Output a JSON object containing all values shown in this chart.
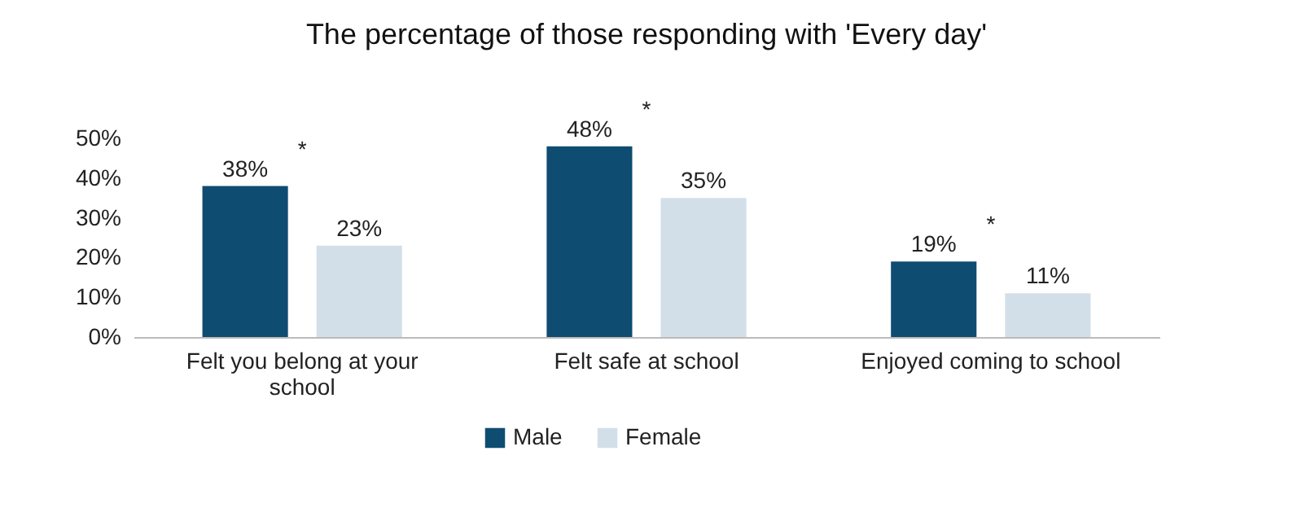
{
  "chart_data": {
    "type": "bar",
    "title": "The percentage of those responding with 'Every day'",
    "categories": [
      "Felt you belong at your school",
      "Felt safe at school",
      "Enjoyed coming to school"
    ],
    "series": [
      {
        "name": "Male",
        "color": "#0f4c71",
        "values": [
          38,
          48,
          19
        ],
        "value_labels": [
          "38%",
          "48%",
          "19%"
        ]
      },
      {
        "name": "Female",
        "color": "#d3dfe8",
        "values": [
          23,
          35,
          11
        ],
        "value_labels": [
          "23%",
          "35%",
          "11%"
        ]
      }
    ],
    "ylim": [
      0,
      50
    ],
    "yticks": [
      {
        "value": 0,
        "label": "0%"
      },
      {
        "value": 10,
        "label": "10%"
      },
      {
        "value": 20,
        "label": "20%"
      },
      {
        "value": 30,
        "label": "30%"
      },
      {
        "value": 40,
        "label": "40%"
      },
      {
        "value": 50,
        "label": "50%"
      }
    ],
    "annotations": [
      "*",
      "*",
      "*"
    ],
    "legend": "bottom",
    "grid": false
  }
}
